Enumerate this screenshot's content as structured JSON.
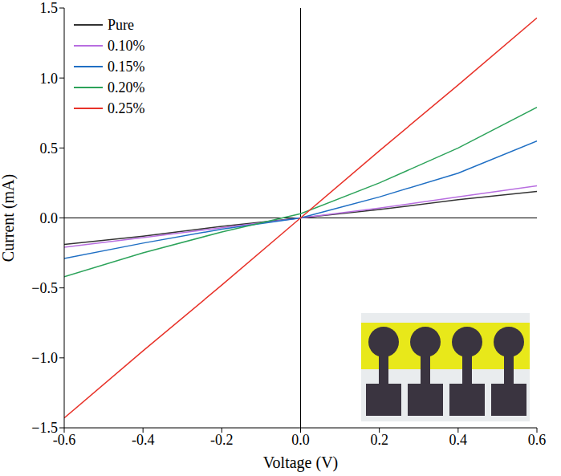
{
  "chart_data": {
    "type": "line",
    "x_label": "Voltage (V)",
    "y_label": "Current (mA)",
    "x": [
      -0.6,
      -0.4,
      -0.2,
      0.0,
      0.2,
      0.4,
      0.6
    ],
    "series": [
      {
        "name": "Pure",
        "color": "#333333",
        "values": [
          -0.19,
          -0.13,
          -0.06,
          0,
          0.06,
          0.13,
          0.19
        ]
      },
      {
        "name": "0.10%",
        "color": "#b86ee0",
        "values": [
          -0.21,
          -0.14,
          -0.07,
          0,
          0.07,
          0.15,
          0.23
        ]
      },
      {
        "name": "0.15%",
        "color": "#1f6fc4",
        "values": [
          -0.29,
          -0.18,
          -0.08,
          0,
          0.15,
          0.32,
          0.55
        ]
      },
      {
        "name": "0.20%",
        "color": "#2ca35a",
        "values": [
          -0.42,
          -0.25,
          -0.1,
          0.03,
          0.25,
          0.5,
          0.79
        ]
      },
      {
        "name": "0.25%",
        "color": "#e8332a",
        "values": [
          -1.43,
          -0.95,
          -0.48,
          0,
          0.48,
          0.95,
          1.43
        ]
      }
    ],
    "xlim": [
      -0.6,
      0.6
    ],
    "xticks": [
      -0.6,
      -0.4,
      -0.2,
      {
        "value": 0,
        "label": "0.0"
      },
      0.2,
      0.4,
      0.6
    ],
    "ylim": [
      -1.5,
      1.5
    ],
    "yticks": [
      {
        "value": -1.5,
        "label": "−1.5"
      },
      {
        "value": -1.0,
        "label": "−1.0"
      },
      {
        "value": -0.5,
        "label": "−0.5"
      },
      {
        "value": 0,
        "label": "0.0"
      },
      0.5,
      {
        "value": 1.0,
        "label": "1.0"
      },
      1.5
    ],
    "legend": "upper left",
    "grid": false
  }
}
